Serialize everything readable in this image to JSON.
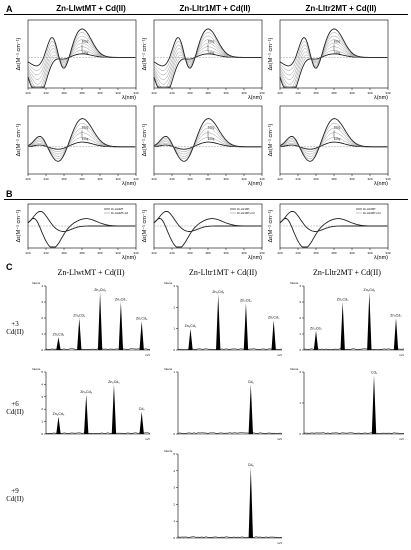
{
  "sections": {
    "a": "A",
    "b": "B",
    "c": "C"
  },
  "cd_titles": [
    "Zn-LlwtMT + Cd(II)",
    "Zn-Lltr1MT + Cd(II)",
    "Zn-Lltr2MT + Cd(II)"
  ],
  "ms_titles": [
    "Zn-LlwtMT + Cd(II)",
    "Zn-Lltr1MT + Cd(II)",
    "Zn-Lltr2MT + Cd(II)"
  ],
  "row_labels": {
    "r3": {
      "eq": "+3",
      "metal": "Cd(II)"
    },
    "r6": {
      "eq": "+6",
      "metal": "Cd(II)"
    },
    "r9": {
      "eq": "+9",
      "metal": "Cd(II)"
    }
  },
  "cd_axes": {
    "ylabel": "Δε(M⁻¹ cm⁻¹)",
    "xlabel": "λ(nm)",
    "xticks": [
      "220",
      "240",
      "260",
      "280",
      "300",
      "320",
      "340"
    ]
  },
  "ms_axes": {
    "ylabel": "Intens.",
    "unit": "m/z"
  },
  "chart_data": [
    {
      "type": "line",
      "panel": "A1",
      "x_range": [
        220,
        350
      ],
      "peak_labels": [
        "8 Eq",
        "3 Eq"
      ]
    },
    {
      "type": "line",
      "panel": "A2",
      "x_range": [
        220,
        350
      ],
      "peak_labels": [
        "8 Eq",
        "3 Eq"
      ]
    },
    {
      "type": "line",
      "panel": "A3",
      "x_range": [
        220,
        350
      ],
      "peak_labels": [
        "8 Eq",
        "3 Eq"
      ]
    },
    {
      "type": "line",
      "panel": "A4",
      "x_range": [
        220,
        350
      ],
      "peak_labels": [
        "9 Eq",
        "6 Eq"
      ]
    },
    {
      "type": "line",
      "panel": "A5",
      "x_range": [
        220,
        350
      ],
      "peak_labels": [
        "9 Eq",
        "6 Eq"
      ]
    },
    {
      "type": "line",
      "panel": "A6",
      "x_range": [
        220,
        350
      ],
      "peak_labels": [
        "9 Eq",
        "6 Eq"
      ]
    },
    {
      "type": "line",
      "panel": "B1",
      "x_range": [
        220,
        350
      ],
      "legend": [
        "Zn-LlwtMT",
        "Zn-LlwtMT+Cd"
      ]
    },
    {
      "type": "line",
      "panel": "B2",
      "x_range": [
        220,
        350
      ],
      "legend": [
        "Zn-Lltr1MT",
        "Zn-Lltr1MT+Cd"
      ]
    },
    {
      "type": "line",
      "panel": "B3",
      "x_range": [
        220,
        350
      ],
      "legend": [
        "Zn-Lltr2MT",
        "Zn-Lltr2MT+Cd"
      ]
    },
    {
      "type": "bar",
      "panel": "C-wt-3",
      "categories": [
        "Zn₅Cd₂",
        "Zn₄Cd₃",
        "Zn₃Cd₄",
        "Zn₂Cd₅",
        "Zn₁Cd₆"
      ],
      "values": [
        0.8,
        2.0,
        3.6,
        3.0,
        1.8
      ],
      "ylim": [
        0,
        4
      ]
    },
    {
      "type": "bar",
      "panel": "C-tr1-3",
      "categories": [
        "Zn₄Cd₂",
        "Zn₃Cd₃",
        "Zn₂Cd₄",
        "Zn₁Cd₅"
      ],
      "values": [
        1.0,
        2.6,
        2.2,
        1.4
      ],
      "ylim": [
        0,
        3
      ]
    },
    {
      "type": "bar",
      "panel": "C-tr2-3",
      "categories": [
        "Zn₄Cd₂",
        "Zn₃Cd₃",
        "Zn₂Cd₄",
        "Zn₁Cd₅"
      ],
      "values": [
        1.2,
        3.0,
        3.6,
        2.0
      ],
      "ylim": [
        0,
        4
      ]
    },
    {
      "type": "bar",
      "panel": "C-wt-6",
      "categories": [
        "Zn₄Cd₃",
        "Zn₃Cd₄",
        "Zn₂Cd₅",
        "Cd₇"
      ],
      "values": [
        1.4,
        3.2,
        4.0,
        1.8
      ],
      "ylim": [
        0,
        5
      ]
    },
    {
      "type": "bar",
      "panel": "C-tr1-6",
      "categories": [
        "Cd₆"
      ],
      "values": [
        0.8
      ],
      "ylim": [
        0,
        1
      ]
    },
    {
      "type": "bar",
      "panel": "C-tr2-6",
      "categories": [
        "Cd₆"
      ],
      "values": [
        1.9
      ],
      "ylim": [
        0,
        2
      ]
    },
    {
      "type": "bar",
      "panel": "C-wt-9",
      "categories": [
        "Cd₉"
      ],
      "values": [
        4.2
      ],
      "ylim": [
        0,
        5
      ]
    }
  ]
}
